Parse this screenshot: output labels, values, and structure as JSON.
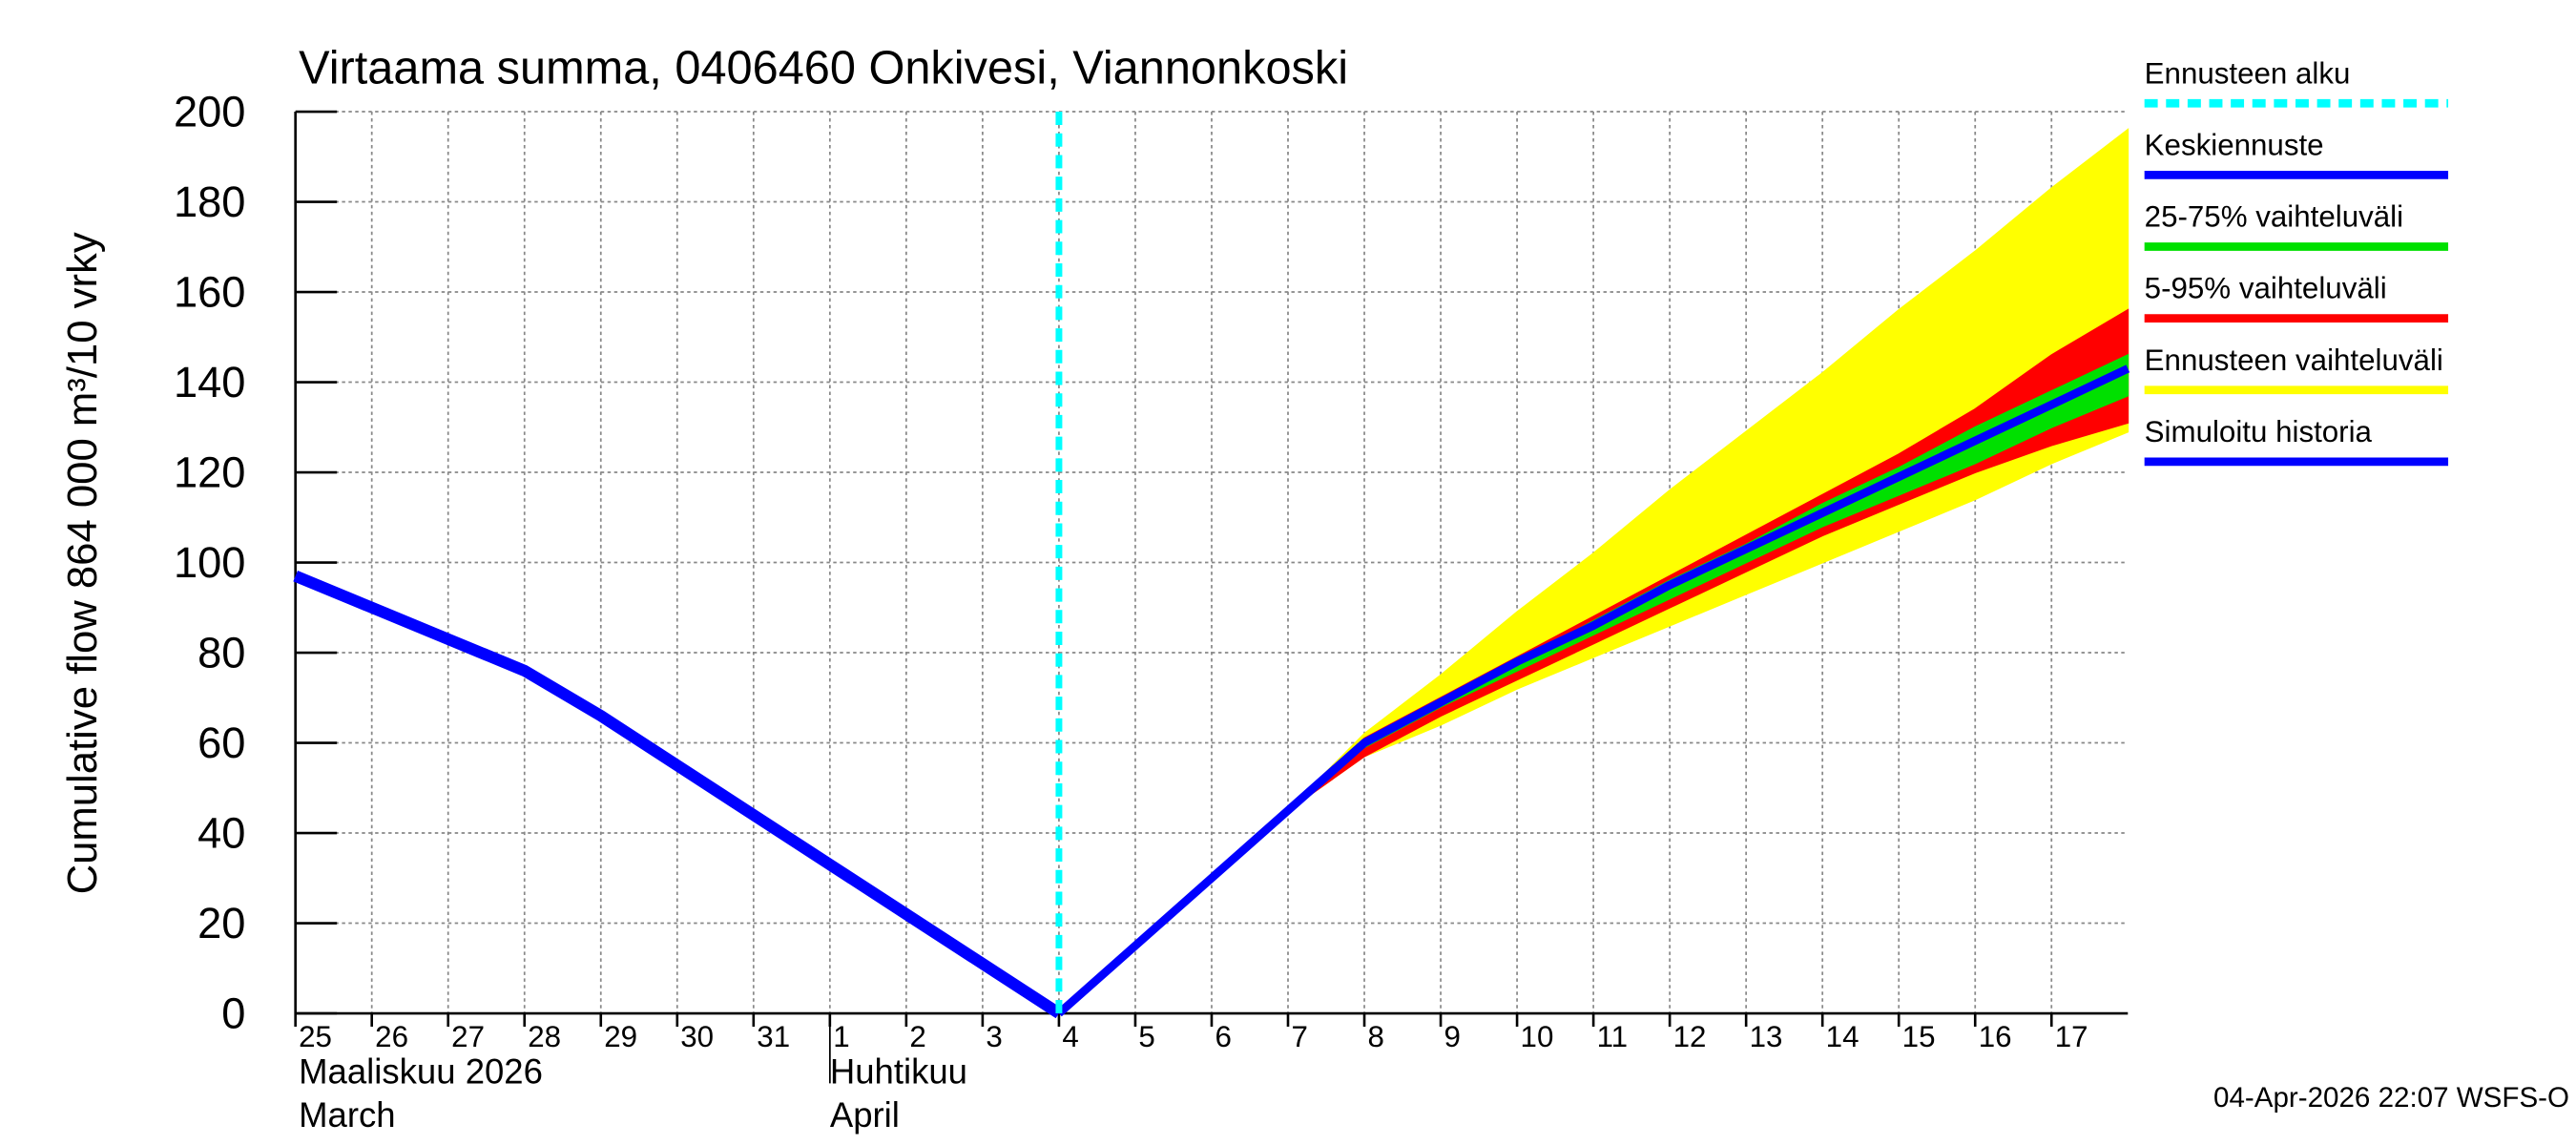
{
  "chart_data": {
    "type": "line",
    "title": "Virtaama summa, 0406460 Onkivesi, Viannonkoski",
    "y_label": "Cumulative flow    864 000 m³/10 vrky",
    "timestamp": "04-Apr-2026 22:07 WSFS-O",
    "xlim": [
      0,
      24
    ],
    "xticks": [
      {
        "value": 0,
        "label": "25"
      },
      {
        "value": 1,
        "label": "26"
      },
      {
        "value": 2,
        "label": "27"
      },
      {
        "value": 3,
        "label": "28"
      },
      {
        "value": 4,
        "label": "29"
      },
      {
        "value": 5,
        "label": "30"
      },
      {
        "value": 6,
        "label": "31"
      },
      {
        "value": 7,
        "label": "1"
      },
      {
        "value": 8,
        "label": "2"
      },
      {
        "value": 9,
        "label": "3"
      },
      {
        "value": 10,
        "label": "4"
      },
      {
        "value": 11,
        "label": "5"
      },
      {
        "value": 12,
        "label": "6"
      },
      {
        "value": 13,
        "label": "7"
      },
      {
        "value": 14,
        "label": "8"
      },
      {
        "value": 15,
        "label": "9"
      },
      {
        "value": 16,
        "label": "10"
      },
      {
        "value": 17,
        "label": "11"
      },
      {
        "value": 18,
        "label": "12"
      },
      {
        "value": 19,
        "label": "13"
      },
      {
        "value": 20,
        "label": "14"
      },
      {
        "value": 21,
        "label": "15"
      },
      {
        "value": 22,
        "label": "16"
      },
      {
        "value": 23,
        "label": "17"
      }
    ],
    "months": [
      {
        "value": 0,
        "label": "Maaliskuu 2026",
        "label2": "March"
      },
      {
        "value": 7,
        "label": "Huhtikuu",
        "label2": "April"
      }
    ],
    "ylim": [
      0,
      200
    ],
    "yticks": [
      0,
      20,
      40,
      60,
      80,
      100,
      120,
      140,
      160,
      180,
      200
    ],
    "grid": true,
    "forecast_start": {
      "name": "Ennusteen alku",
      "value": 10,
      "color": "#00ffff"
    },
    "bands": [
      {
        "name": "Ennusteen vaihteluväli",
        "color": "#ffff00",
        "x": [
          10,
          11,
          12,
          13,
          14,
          15,
          16,
          17,
          18,
          19,
          20,
          21,
          22,
          23,
          24
        ],
        "lower": [
          0,
          15,
          30,
          45,
          57,
          64,
          72,
          79,
          86,
          93,
          100,
          107,
          114,
          122,
          129
        ],
        "upper": [
          0,
          15,
          30,
          45,
          62,
          75,
          89,
          102,
          116,
          129,
          142,
          156,
          169,
          183,
          196
        ]
      },
      {
        "name": "5-95% vaihteluväli",
        "color": "#ff0000",
        "x": [
          10,
          11,
          12,
          13,
          14,
          15,
          16,
          17,
          18,
          19,
          20,
          21,
          22,
          23,
          24
        ],
        "lower": [
          0,
          15,
          30,
          45,
          57,
          66,
          74,
          82,
          90,
          98,
          106,
          113,
          120,
          126,
          131
        ],
        "upper": [
          0,
          15,
          30,
          45,
          61,
          70,
          79,
          88,
          97,
          106,
          115,
          124,
          134,
          146,
          156
        ]
      },
      {
        "name": "25-75% vaihteluväli",
        "color": "#00e000",
        "x": [
          10,
          11,
          12,
          13,
          14,
          15,
          16,
          17,
          18,
          19,
          20,
          21,
          22,
          23,
          24
        ],
        "lower": [
          0,
          15,
          30,
          45,
          59,
          68,
          76,
          84,
          92,
          100,
          108,
          115,
          122,
          130,
          137
        ],
        "upper": [
          0,
          15,
          30,
          45,
          60,
          69,
          78,
          87,
          96,
          104,
          113,
          121,
          130,
          138,
          146
        ]
      }
    ],
    "series": [
      {
        "name": "Simuloitu historia",
        "color": "#0000ff",
        "x": [
          0,
          1,
          2,
          3,
          4,
          5,
          6,
          7,
          8,
          9,
          10
        ],
        "values": [
          97,
          90,
          83,
          76,
          66,
          55,
          44,
          33,
          22,
          11,
          0
        ]
      },
      {
        "name": "Keskiennuste",
        "color": "#0000ff",
        "x": [
          10,
          11,
          12,
          13,
          14,
          15,
          16,
          17,
          18,
          19,
          20,
          21,
          22,
          23,
          24
        ],
        "values": [
          0,
          15,
          30,
          45,
          60,
          69,
          78,
          86,
          95,
          103,
          111,
          119,
          127,
          135,
          143
        ]
      }
    ]
  }
}
